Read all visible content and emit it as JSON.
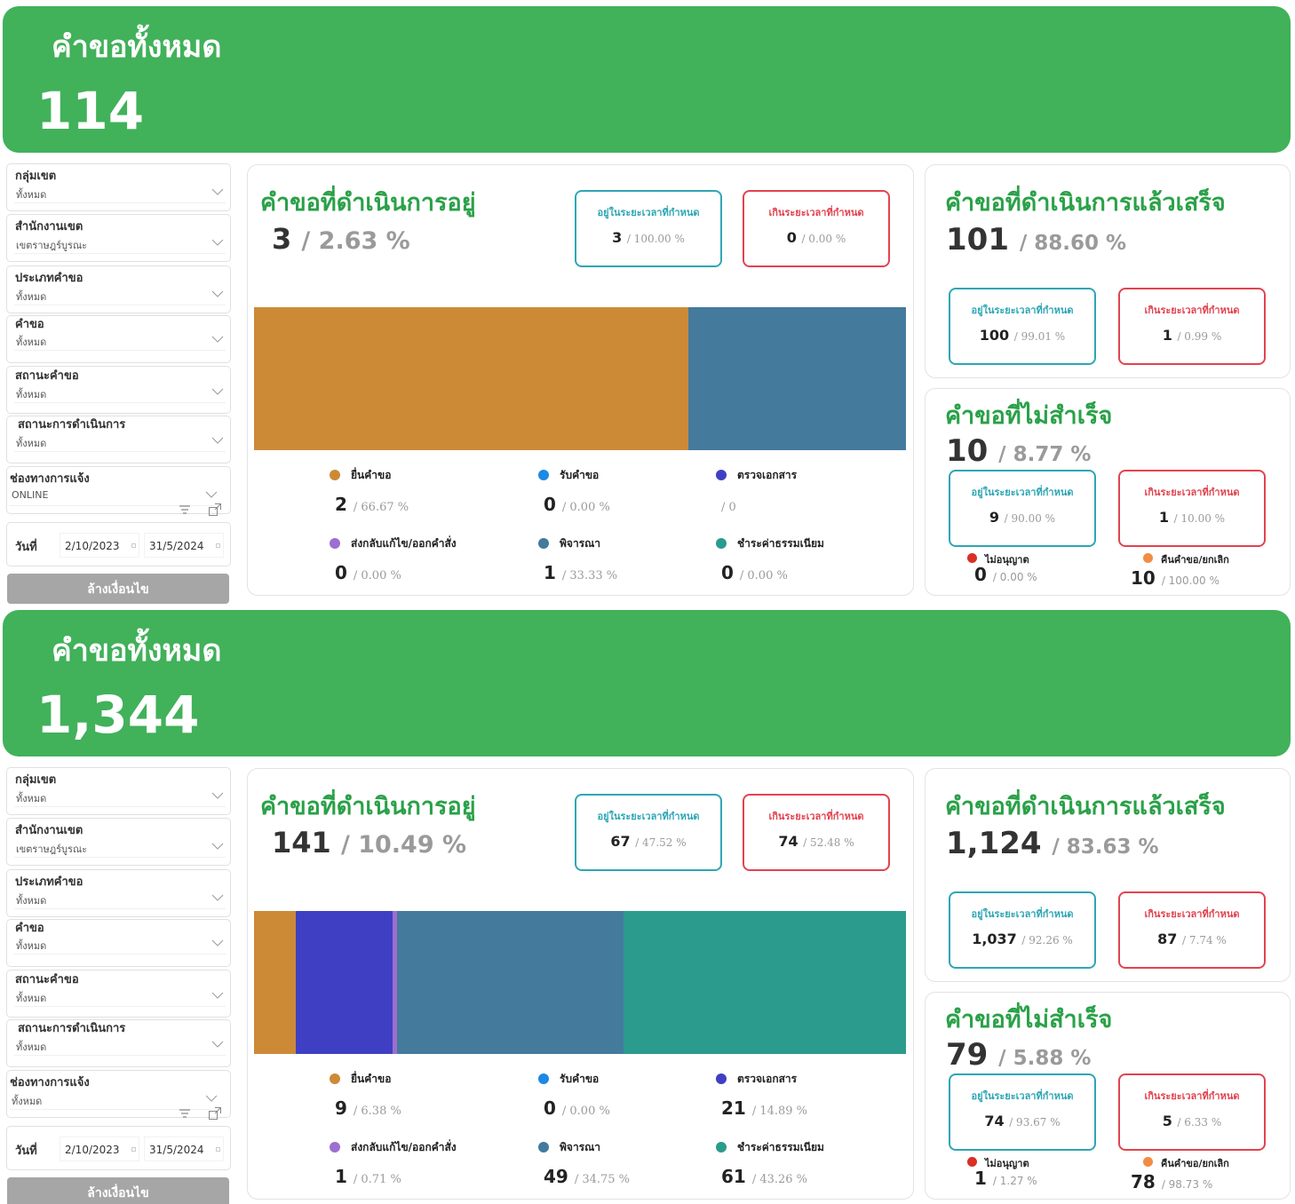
{
  "colors": {
    "banner": "#41b15a",
    "title_green": "#2aa148",
    "in_time": "#2ea6b4",
    "over_time": "#e2434f",
    "stage_colors": [
      "#cc8a37",
      "#1e88e5",
      "#3f3fc4",
      "#9c6fd0",
      "#447a9c",
      "#2a9b8c"
    ],
    "reject": "#d93025",
    "withdraw": "#f28c45"
  },
  "common": {
    "total_title": "คำขอทั้งหมด",
    "in_progress_title": "คำขอที่ดำเนินการอยู่",
    "completed_title": "คำขอที่ดำเนินการแล้วเสร็จ",
    "failed_title": "คำขอที่ไม่สำเร็จ",
    "in_time_label": "อยู่ในระยะเวลาที่กำหนด",
    "over_time_label": "เกินระยะเวลาที่กำหนด",
    "clear_button": "ล้างเงื่อนไข",
    "date_label": "วันที่",
    "filter_labels": [
      "กลุ่มเขต",
      "สำนักงานเขต",
      "ประเภทคำขอ",
      "คำขอ",
      "สถานะคำขอ",
      "สถานะการดำเนินการ",
      "ช่องทางการแจ้ง"
    ],
    "stage_labels": [
      "ยื่นคำขอ",
      "รับคำขอ",
      "ตรวจเอกสาร",
      "ส่งกลับแก้ไข/ออกคำสั่ง",
      "พิจารณา",
      "ชำระค่าธรรมเนียม"
    ],
    "fail_labels": [
      "ไม่อนุญาต",
      "คืนคำขอ/ยกเลิก"
    ]
  },
  "dashboards": [
    {
      "total": "114",
      "filters": [
        "ทั้งหมด",
        "เขตราษฎร์บูรณะ",
        "ทั้งหมด",
        "ทั้งหมด",
        "ทั้งหมด",
        "ทั้งหมด",
        "ONLINE"
      ],
      "date_from": "2/10/2023",
      "date_to": "31/5/2024",
      "in_progress": {
        "count": "3",
        "pct": "/ 2.63 %",
        "in_time": {
          "count": "3",
          "pct": "/ 100.00 %"
        },
        "over_time": {
          "count": "0",
          "pct": "/ 0.00 %"
        },
        "stages": [
          {
            "count": "2",
            "pct": "/ 66.67 %"
          },
          {
            "count": "0",
            "pct": "/ 0.00 %"
          },
          {
            "count": "",
            "pct": "/ 0"
          },
          {
            "count": "0",
            "pct": "/ 0.00 %"
          },
          {
            "count": "1",
            "pct": "/ 33.33 %"
          },
          {
            "count": "0",
            "pct": "/ 0.00 %"
          }
        ]
      },
      "completed": {
        "count": "101",
        "pct": "/ 88.60 %",
        "in_time": {
          "count": "100",
          "pct": "/ 99.01 %"
        },
        "over_time": {
          "count": "1",
          "pct": "/ 0.99 %"
        }
      },
      "failed": {
        "count": "10",
        "pct": "/ 8.77 %",
        "in_time": {
          "count": "9",
          "pct": "/ 90.00 %"
        },
        "over_time": {
          "count": "1",
          "pct": "/ 10.00 %"
        },
        "reject": {
          "count": "0",
          "pct": "/ 0.00 %"
        },
        "withdraw": {
          "count": "10",
          "pct": "/ 100.00 %"
        }
      }
    },
    {
      "total": "1,344",
      "filters": [
        "ทั้งหมด",
        "เขตราษฎร์บูรณะ",
        "ทั้งหมด",
        "ทั้งหมด",
        "ทั้งหมด",
        "ทั้งหมด",
        "ทั้งหมด"
      ],
      "date_from": "2/10/2023",
      "date_to": "31/5/2024",
      "in_progress": {
        "count": "141",
        "pct": "/ 10.49 %",
        "in_time": {
          "count": "67",
          "pct": "/ 47.52 %"
        },
        "over_time": {
          "count": "74",
          "pct": "/ 52.48 %"
        },
        "stages": [
          {
            "count": "9",
            "pct": "/ 6.38 %"
          },
          {
            "count": "0",
            "pct": "/ 0.00 %"
          },
          {
            "count": "21",
            "pct": "/ 14.89 %"
          },
          {
            "count": "1",
            "pct": "/ 0.71 %"
          },
          {
            "count": "49",
            "pct": "/ 34.75 %"
          },
          {
            "count": "61",
            "pct": "/ 43.26 %"
          }
        ]
      },
      "completed": {
        "count": "1,124",
        "pct": "/ 83.63 %",
        "in_time": {
          "count": "1,037",
          "pct": "/ 92.26 %"
        },
        "over_time": {
          "count": "87",
          "pct": "/ 7.74 %"
        }
      },
      "failed": {
        "count": "79",
        "pct": "/ 5.88 %",
        "in_time": {
          "count": "74",
          "pct": "/ 93.67 %"
        },
        "over_time": {
          "count": "5",
          "pct": "/ 6.33 %"
        },
        "reject": {
          "count": "1",
          "pct": "/ 1.27 %"
        },
        "withdraw": {
          "count": "78",
          "pct": "/ 98.73 %"
        }
      }
    }
  ],
  "chart_data": [
    {
      "type": "bar",
      "title": "คำขอที่ดำเนินการอยู่ (stacked, 100%)",
      "categories": [
        "ยื่นคำขอ",
        "รับคำขอ",
        "ตรวจเอกสาร",
        "ส่งกลับแก้ไข/ออกคำสั่ง",
        "พิจารณา",
        "ชำระค่าธรรมเนียม"
      ],
      "values": [
        2,
        0,
        0,
        0,
        1,
        0
      ]
    },
    {
      "type": "bar",
      "title": "คำขอที่ดำเนินการอยู่ (stacked, 100%)",
      "categories": [
        "ยื่นคำขอ",
        "รับคำขอ",
        "ตรวจเอกสาร",
        "ส่งกลับแก้ไข/ออกคำสั่ง",
        "พิจารณา",
        "ชำระค่าธรรมเนียม"
      ],
      "values": [
        9,
        0,
        21,
        1,
        49,
        61
      ]
    }
  ]
}
